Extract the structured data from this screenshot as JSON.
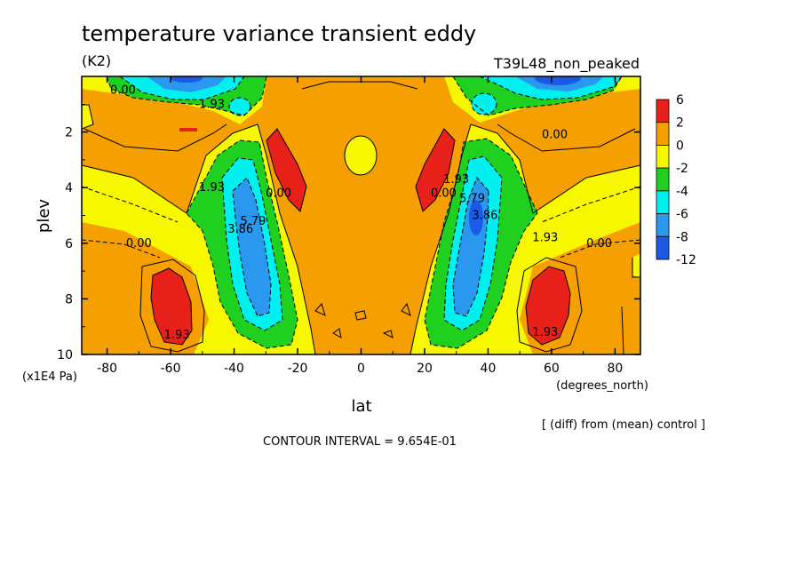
{
  "header": {
    "title": "temperature variance transient eddy",
    "units": "(K2)",
    "run_label": "T39L48_non_peaked"
  },
  "footer": {
    "diff_note": "[ (diff) from (mean) control ]",
    "contour_interval": "CONTOUR INTERVAL = 9.654E-01"
  },
  "chart_data": {
    "type": "heatmap",
    "title": "temperature variance transient eddy",
    "xlabel": "lat",
    "xunits": "(degrees_north)",
    "ylabel": "plev",
    "yunits": "(x1E4 Pa)",
    "xlim": [
      -88,
      88
    ],
    "ylim": [
      10,
      0
    ],
    "x_ticks": [
      -80,
      -60,
      -40,
      -20,
      0,
      20,
      40,
      60,
      80
    ],
    "y_ticks": [
      2,
      4,
      6,
      8,
      10
    ],
    "grid": false,
    "legend_position": "right",
    "colorbar": {
      "labels": [
        "6",
        "2",
        "0",
        "-2",
        "-4",
        "-6",
        "-8",
        "-12"
      ],
      "colors": [
        "#e8201a",
        "#f5a000",
        "#f7f700",
        "#1fd01f",
        "#00f0f0",
        "#2b98f0",
        "#1a5ae6"
      ]
    },
    "contour_labels": [
      {
        "text": "0.00",
        "lat": -75,
        "plev": 0.5
      },
      {
        "text": "1.93",
        "lat": -47,
        "plev": 1.0
      },
      {
        "text": "1.93",
        "lat": -47,
        "plev": 4.0
      },
      {
        "text": "0.00",
        "lat": -70,
        "plev": 6.0
      },
      {
        "text": "1.93",
        "lat": -58,
        "plev": 9.3
      },
      {
        "text": "3.86",
        "lat": -38,
        "plev": 5.5
      },
      {
        "text": "5.79",
        "lat": -34,
        "plev": 5.2
      },
      {
        "text": "0.00",
        "lat": -26,
        "plev": 4.2
      },
      {
        "text": "0.00",
        "lat": 26,
        "plev": 4.2
      },
      {
        "text": "1.93",
        "lat": 30,
        "plev": 3.7
      },
      {
        "text": "5.79",
        "lat": 35,
        "plev": 4.4
      },
      {
        "text": "3.86",
        "lat": 39,
        "plev": 5.0
      },
      {
        "text": "0.00",
        "lat": 61,
        "plev": 2.1
      },
      {
        "text": "1.93",
        "lat": 58,
        "plev": 5.8
      },
      {
        "text": "0.00",
        "lat": 75,
        "plev": 6.0
      },
      {
        "text": "1.93",
        "lat": 58,
        "plev": 9.2
      }
    ]
  }
}
